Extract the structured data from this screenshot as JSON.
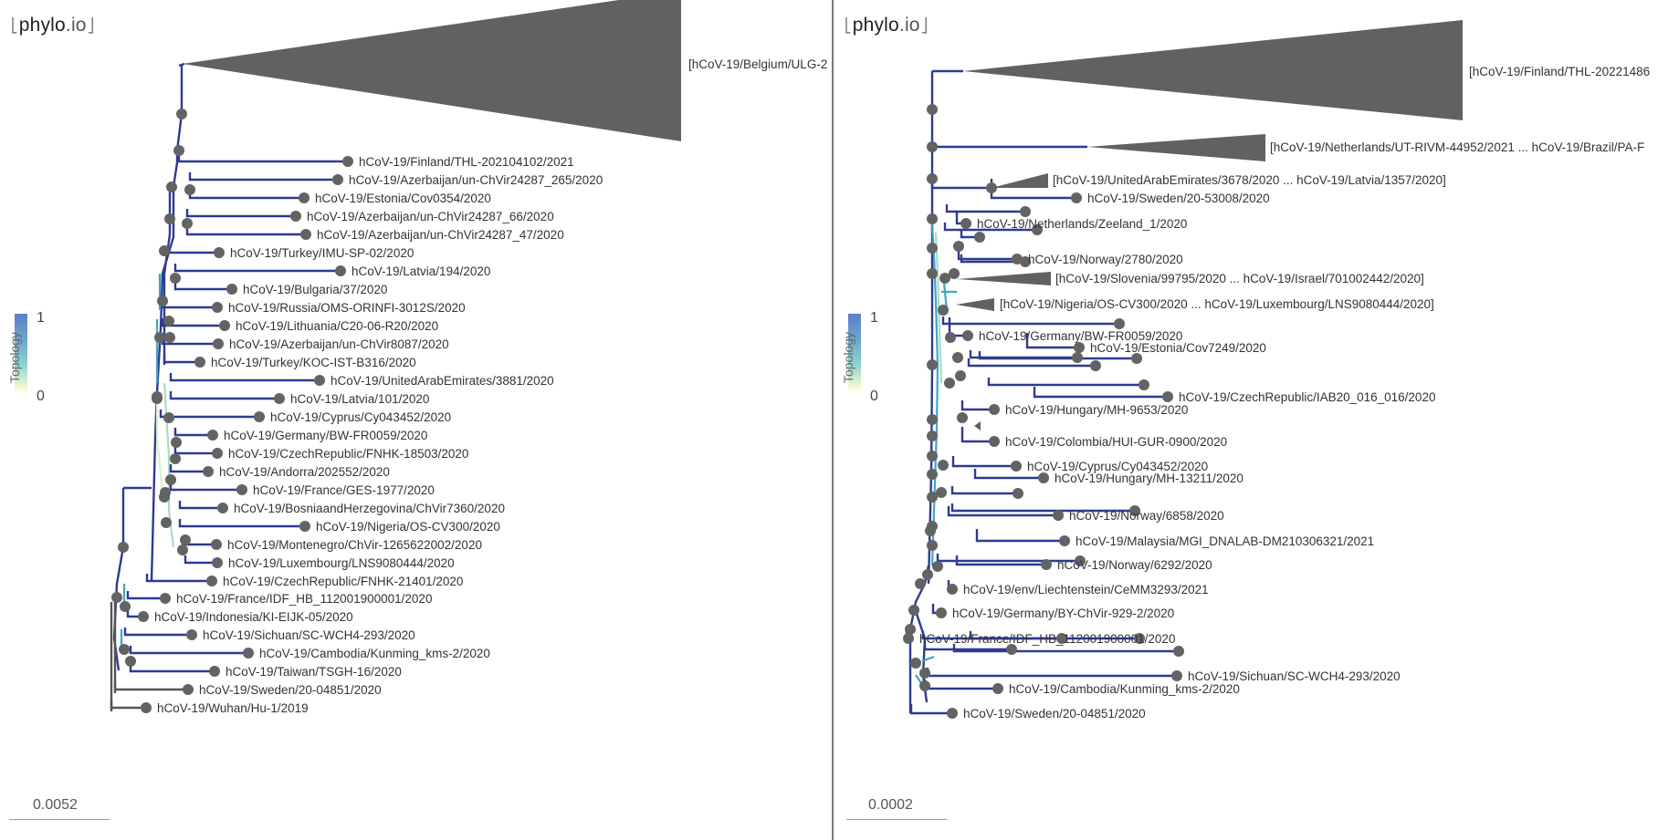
{
  "app": {
    "logo_prefix": "phylo",
    "logo_suffix": ".io"
  },
  "colors": {
    "dark": "#2e3a92",
    "mid": "#3ea7c0",
    "light": "#a6ddc9",
    "pale": "#d9efc8",
    "grey": "#555555",
    "node": "#636363",
    "collapsed": "#616161"
  },
  "left": {
    "scale_label": "0.0052",
    "legend": {
      "title": "Topology",
      "high": "1",
      "low": "0"
    },
    "collapsed_label": "[hCoV-19/Belgium/ULG-2",
    "leaves": [
      "hCoV-19/Finland/THL-202104102/2021",
      "hCoV-19/Azerbaijan/un-ChVir24287_265/2020",
      "hCoV-19/Estonia/Cov0354/2020",
      "hCoV-19/Azerbaijan/un-ChVir24287_66/2020",
      "hCoV-19/Azerbaijan/un-ChVir24287_47/2020",
      "hCoV-19/Turkey/IMU-SP-02/2020",
      "hCoV-19/Latvia/194/2020",
      "hCoV-19/Bulgaria/37/2020",
      "hCoV-19/Russia/OMS-ORINFI-3012S/2020",
      "hCoV-19/Lithuania/C20-06-R20/2020",
      "hCoV-19/Azerbaijan/un-ChVir8087/2020",
      "hCoV-19/Turkey/KOC-IST-B316/2020",
      "hCoV-19/UnitedArabEmirates/3881/2020",
      "hCoV-19/Latvia/101/2020",
      "hCoV-19/Cyprus/Cy043452/2020",
      "hCoV-19/Germany/BW-FR0059/2020",
      "hCoV-19/CzechRepublic/FNHK-18503/2020",
      "hCoV-19/Andorra/202552/2020",
      "hCoV-19/France/GES-1977/2020",
      "hCoV-19/BosniaandHerzegovina/ChVir7360/2020",
      "hCoV-19/Nigeria/OS-CV300/2020",
      "hCoV-19/Montenegro/ChVir-1265622002/2020",
      "hCoV-19/Luxembourg/LNS9080444/2020",
      "hCoV-19/CzechRepublic/FNHK-21401/2020",
      "hCoV-19/France/IDF_HB_112001900001/2020",
      "hCoV-19/Indonesia/KI-EIJK-05/2020",
      "hCoV-19/Sichuan/SC-WCH4-293/2020",
      "hCoV-19/Cambodia/Kunming_kms-2/2020",
      "hCoV-19/Taiwan/TSGH-16/2020",
      "hCoV-19/Sweden/20-04851/2020",
      "hCoV-19/Wuhan/Hu-1/2019"
    ]
  },
  "right": {
    "scale_label": "0.0002",
    "legend": {
      "title": "Topology",
      "high": "1",
      "low": "0"
    },
    "collapsed_labels": [
      "[hCoV-19/Finland/THL-20221486",
      "[hCoV-19/Netherlands/UT-RIVM-44952/2021 ... hCoV-19/Brazil/PA-F",
      "[hCoV-19/UnitedArabEmirates/3678/2020 ... hCoV-19/Latvia/1357/2020]",
      "[hCoV-19/Slovenia/99795/2020 ... hCoV-19/Israel/701002442/2020]",
      "[hCoV-19/Nigeria/OS-CV300/2020 ... hCoV-19/Luxembourg/LNS9080444/2020]"
    ],
    "leaves": [
      "hCoV-19/Sweden/20-53008/2020",
      "hCoV-19/Netherlands/Zeeland_1/2020",
      "hCoV-19/Norway/2780/2020",
      "hCoV-19/Germany/BW-FR0059/2020",
      "hCoV-19/Estonia/Cov7249/2020",
      "hCoV-19/CzechRepublic/IAB20_016_016/2020",
      "hCoV-19/Hungary/MH-9653/2020",
      "hCoV-19/Colombia/HUI-GUR-0900/2020",
      "hCoV-19/Cyprus/Cy043452/2020",
      "hCoV-19/Hungary/MH-13211/2020",
      "hCoV-19/Norway/6858/2020",
      "hCoV-19/Malaysia/MGI_DNALAB-DM210306321/2021",
      "hCoV-19/Norway/6292/2020",
      "hCoV-19/env/Liechtenstein/CeMM3293/2021",
      "hCoV-19/Germany/BY-ChVir-929-2/2020",
      "hCoV-19/France/IDF_HB_112001900001/2020",
      "hCoV-19/Sichuan/SC-WCH4-293/2020",
      "hCoV-19/Cambodia/Kunming_kms-2/2020",
      "hCoV-19/Sweden/20-04851/2020"
    ]
  }
}
